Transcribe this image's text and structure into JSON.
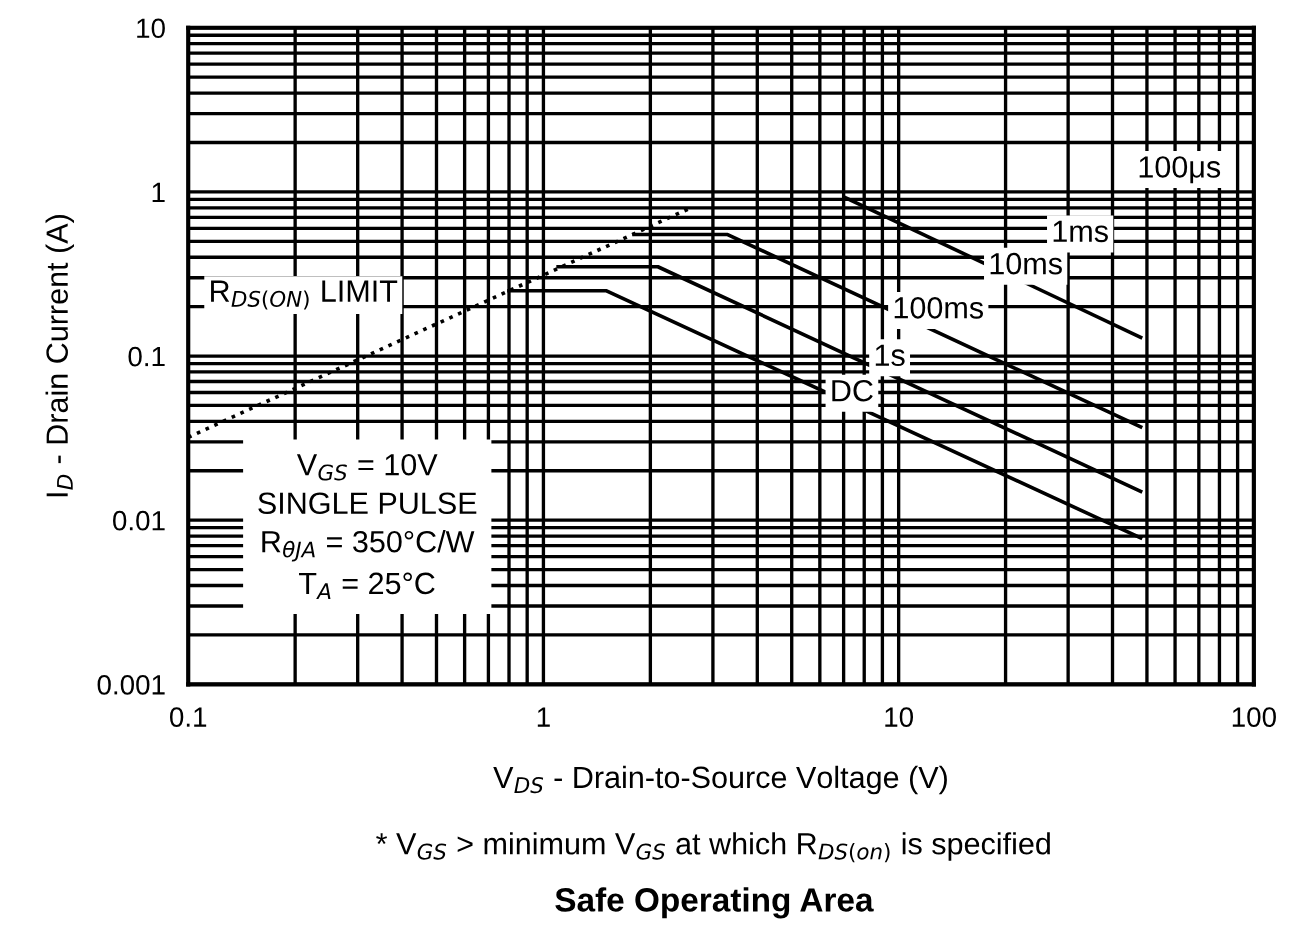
{
  "chart_data": {
    "type": "line",
    "title": "Safe Operating Area",
    "xlabel": "V$_{DS}$ - Drain-to-Source Voltage (V)",
    "ylabel": "I$_{D}$ - Drain Current (A)",
    "log": "xy",
    "xlim": [
      0.1,
      100
    ],
    "ylim": [
      0.001,
      10
    ],
    "xticks": [
      0.1,
      1,
      10,
      100
    ],
    "yticks": [
      0.001,
      0.01,
      0.1,
      1,
      10
    ],
    "grid": true,
    "legend": false,
    "marker": "none",
    "series": [
      {
        "name": "R$_{DS(ON)}$ LIMIT",
        "color": "#000000",
        "line_style": "dotted",
        "x": [
          0.1,
          2.6
        ],
        "values": [
          0.032,
          0.8
        ]
      },
      {
        "name": "10ms",
        "color": "#000000",
        "x": [
          7.1,
          48
        ],
        "values": [
          0.92,
          0.13
        ]
      },
      {
        "name": "100ms",
        "color": "#000000",
        "x": [
          1.8,
          3.3,
          48
        ],
        "values": [
          0.55,
          0.55,
          0.037
        ]
      },
      {
        "name": "1s",
        "color": "#000000",
        "x": [
          1.1,
          2.1,
          48
        ],
        "values": [
          0.35,
          0.35,
          0.015
        ]
      },
      {
        "name": "DC",
        "color": "#000000",
        "x": [
          0.8,
          1.5,
          48
        ],
        "values": [
          0.25,
          0.25,
          0.0078
        ]
      }
    ],
    "annotations": [
      "100μs",
      "1ms",
      "V$_{GS}$ = 10V\nSINGLE PULSE\nR$_{θJA}$ = 350°C/W\nT$_{A}$ = 25°C",
      "* V$_{GS}$ > minimum V$_{GS}$ at which R$_{DS(on)}$ is specified"
    ]
  }
}
